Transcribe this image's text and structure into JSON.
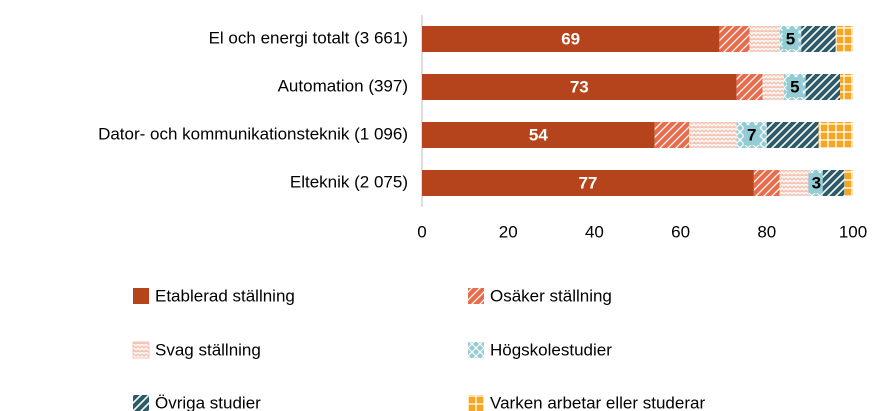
{
  "chart_data": {
    "type": "stacked_barh",
    "categories": [
      "El och energi totalt (3 661)",
      "Automation (397)",
      "Dator- och kommunikationsteknik (1 096)",
      "Elteknik (2 075)"
    ],
    "series": [
      {
        "name": "Etablerad ställning",
        "color": "#b5441c",
        "pattern": "solid",
        "show_labels": true,
        "label_color": "#ffffff",
        "values": [
          69,
          73,
          54,
          77
        ]
      },
      {
        "name": "Osäker ställning",
        "color": "#e66c4c",
        "pattern": "diagonal",
        "show_labels": false,
        "values": [
          7,
          6,
          8,
          6
        ]
      },
      {
        "name": "Svag ställning",
        "color": "#f4c6b6",
        "pattern": "zigzag",
        "show_labels": false,
        "values": [
          7,
          5,
          11,
          7
        ]
      },
      {
        "name": "Högskolestudier",
        "color": "#93ccd4",
        "pattern": "cross",
        "show_labels": true,
        "label_color": "#000000",
        "values": [
          5,
          5,
          7,
          3
        ]
      },
      {
        "name": "Övriga studier",
        "color": "#2d5b69",
        "pattern": "hatch",
        "show_labels": false,
        "values": [
          8,
          8,
          12,
          5
        ]
      },
      {
        "name": "Varken arbetar eller studerar",
        "color": "#f5a623",
        "pattern": "grid",
        "show_labels": false,
        "values": [
          4,
          3,
          8,
          2
        ]
      }
    ],
    "xlim": [
      0,
      100
    ],
    "xticks": [
      0,
      20,
      40,
      60,
      80,
      100
    ],
    "grid": false
  }
}
